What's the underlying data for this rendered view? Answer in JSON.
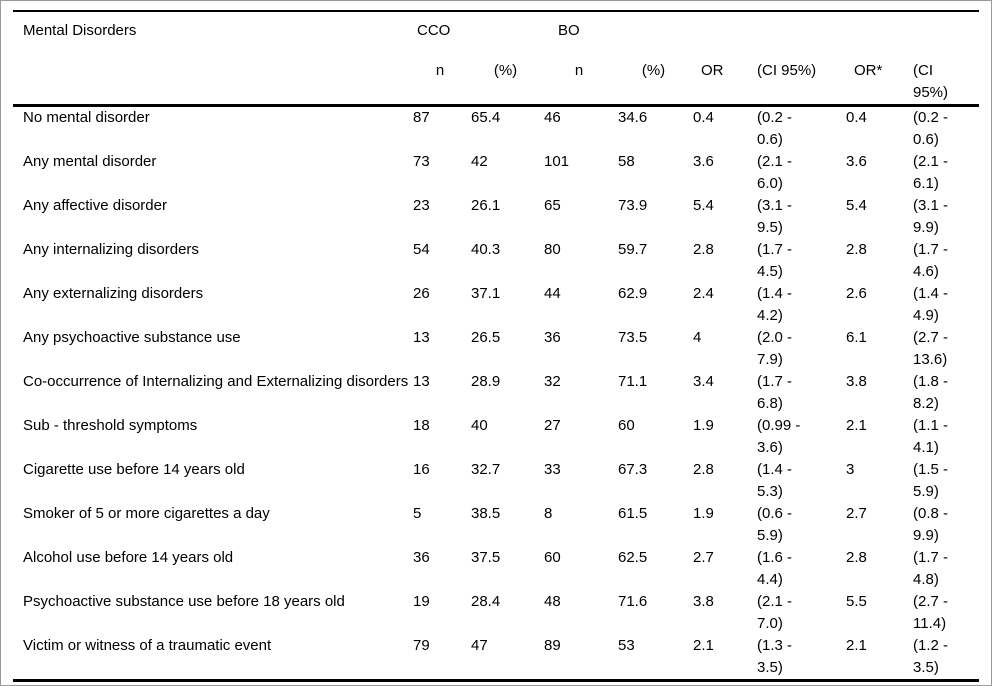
{
  "table": {
    "headers": {
      "mental_disorders": "Mental Disorders",
      "group_cco": "CCO",
      "group_bo": "BO",
      "cco_n": "n",
      "cco_pct": "(%)",
      "bo_n": "n",
      "bo_pct": "(%)",
      "or": "OR",
      "ci": "(CI 95%)",
      "or_adj": "OR*",
      "ci_adj": "(CI 95%)"
    },
    "rows": [
      {
        "label": "No mental disorder",
        "cco_n": "87",
        "cco_pct": "65.4",
        "bo_n": "46",
        "bo_pct": "34.6",
        "or": "0.4",
        "ci": "(0.2 - 0.6)",
        "or_adj": "0.4",
        "ci_adj": "(0.2 - 0.6)"
      },
      {
        "label": "Any mental disorder",
        "cco_n": "73",
        "cco_pct": "42",
        "bo_n": "101",
        "bo_pct": "58",
        "or": "3.6",
        "ci": "(2.1 - 6.0)",
        "or_adj": "3.6",
        "ci_adj": "(2.1 - 6.1)"
      },
      {
        "label": "Any affective disorder",
        "cco_n": "23",
        "cco_pct": "26.1",
        "bo_n": "65",
        "bo_pct": "73.9",
        "or": "5.4",
        "ci": "(3.1 - 9.5)",
        "or_adj": "5.4",
        "ci_adj": "(3.1 - 9.9)"
      },
      {
        "label": "Any internalizing disorders",
        "cco_n": "54",
        "cco_pct": "40.3",
        "bo_n": "80",
        "bo_pct": "59.7",
        "or": "2.8",
        "ci": "(1.7 - 4.5)",
        "or_adj": "2.8",
        "ci_adj": "(1.7 - 4.6)"
      },
      {
        "label": "Any externalizing disorders",
        "cco_n": "26",
        "cco_pct": "37.1",
        "bo_n": "44",
        "bo_pct": "62.9",
        "or": "2.4",
        "ci": "(1.4 - 4.2)",
        "or_adj": "2.6",
        "ci_adj": "(1.4 - 4.9)"
      },
      {
        "label": "Any psychoactive substance use",
        "cco_n": "13",
        "cco_pct": "26.5",
        "bo_n": "36",
        "bo_pct": "73.5",
        "or": "4",
        "ci": "(2.0 - 7.9)",
        "or_adj": "6.1",
        "ci_adj": "(2.7 - 13.6)"
      },
      {
        "label": "Co-occurrence of Internalizing and Externalizing disorders",
        "cco_n": "13",
        "cco_pct": "28.9",
        "bo_n": "32",
        "bo_pct": "71.1",
        "or": "3.4",
        "ci": "(1.7 - 6.8)",
        "or_adj": "3.8",
        "ci_adj": "(1.8 - 8.2)"
      },
      {
        "label": "Sub - threshold symptoms",
        "cco_n": "18",
        "cco_pct": "40",
        "bo_n": "27",
        "bo_pct": "60",
        "or": "1.9",
        "ci": "(0.99 - 3.6)",
        "or_adj": "2.1",
        "ci_adj": "(1.1 - 4.1)"
      },
      {
        "label": "Cigarette use before 14 years old",
        "cco_n": "16",
        "cco_pct": "32.7",
        "bo_n": "33",
        "bo_pct": "67.3",
        "or": "2.8",
        "ci": "(1.4 - 5.3)",
        "or_adj": "3",
        "ci_adj": "(1.5 - 5.9)"
      },
      {
        "label": "Smoker of 5 or more cigarettes a day",
        "cco_n": "5",
        "cco_pct": "38.5",
        "bo_n": "8",
        "bo_pct": "61.5",
        "or": "1.9",
        "ci": "(0.6 - 5.9)",
        "or_adj": "2.7",
        "ci_adj": "(0.8 - 9.9)"
      },
      {
        "label": "Alcohol use before 14 years old",
        "cco_n": "36",
        "cco_pct": "37.5",
        "bo_n": "60",
        "bo_pct": "62.5",
        "or": "2.7",
        "ci": "(1.6 - 4.4)",
        "or_adj": "2.8",
        "ci_adj": "(1.7 - 4.8)"
      },
      {
        "label": "Psychoactive substance use before 18 years old",
        "cco_n": "19",
        "cco_pct": "28.4",
        "bo_n": "48",
        "bo_pct": "71.6",
        "or": "3.8",
        "ci": "(2.1 - 7.0)",
        "or_adj": "5.5",
        "ci_adj": "(2.7 - 11.4)"
      },
      {
        "label": "Victim or witness of a traumatic event",
        "cco_n": "79",
        "cco_pct": "47",
        "bo_n": "89",
        "bo_pct": "53",
        "or": "2.1",
        "ci": "(1.3 - 3.5)",
        "or_adj": "2.1",
        "ci_adj": "(1.2 - 3.5)"
      }
    ]
  }
}
